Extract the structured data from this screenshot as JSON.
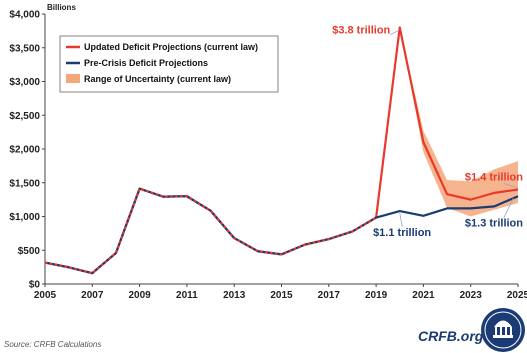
{
  "chart_data": {
    "type": "line",
    "unit_label": "Billions",
    "x": [
      2005,
      2006,
      2007,
      2008,
      2009,
      2010,
      2011,
      2012,
      2013,
      2014,
      2015,
      2016,
      2017,
      2018,
      2019,
      2020,
      2021,
      2022,
      2023,
      2024,
      2025
    ],
    "x_ticks": [
      "2005",
      "2007",
      "2009",
      "2011",
      "2013",
      "2015",
      "2017",
      "2019",
      "2021",
      "2023",
      "2025"
    ],
    "y_ticks": [
      "$0",
      "$500",
      "$1,000",
      "$1,500",
      "$2,000",
      "$2,500",
      "$3,000",
      "$3,500",
      "$4,000"
    ],
    "ylim": [
      0,
      4000
    ],
    "xlim": [
      2005,
      2025
    ],
    "series": [
      {
        "name": "Updated Deficit Projections (current law)",
        "color": "#e8392c",
        "values": [
          318,
          248,
          161,
          459,
          1413,
          1294,
          1300,
          1087,
          680,
          485,
          439,
          585,
          665,
          779,
          984,
          3800,
          2100,
          1330,
          1250,
          1350,
          1400
        ]
      },
      {
        "name": "Pre-Crisis Deficit Projections",
        "color": "#1a3b73",
        "values": [
          318,
          248,
          161,
          459,
          1413,
          1294,
          1300,
          1087,
          680,
          485,
          439,
          585,
          665,
          779,
          984,
          1080,
          1010,
          1120,
          1120,
          1150,
          1300
        ]
      },
      {
        "name": "Range of Uncertainty (current law)",
        "color": "#f5a77a",
        "type": "area",
        "x": [
          2020,
          2021,
          2022,
          2023,
          2024,
          2025
        ],
        "lower": [
          3800,
          1950,
          1130,
          1000,
          1100,
          1200
        ],
        "upper": [
          3800,
          2270,
          1540,
          1520,
          1700,
          1820
        ]
      }
    ],
    "annotations": [
      {
        "text": "$3.8 trillion",
        "color": "#e8392c"
      },
      {
        "text": "$1.4 trillion",
        "color": "#e8392c"
      },
      {
        "text": "$1.1 trillion",
        "color": "#1a3b73"
      },
      {
        "text": "$1.3 trillion",
        "color": "#1a3b73"
      }
    ],
    "legend_position": "top-left",
    "grid": false
  },
  "footer": {
    "source": "Source: CRFB Calculations",
    "brand": "CRFB.org"
  }
}
